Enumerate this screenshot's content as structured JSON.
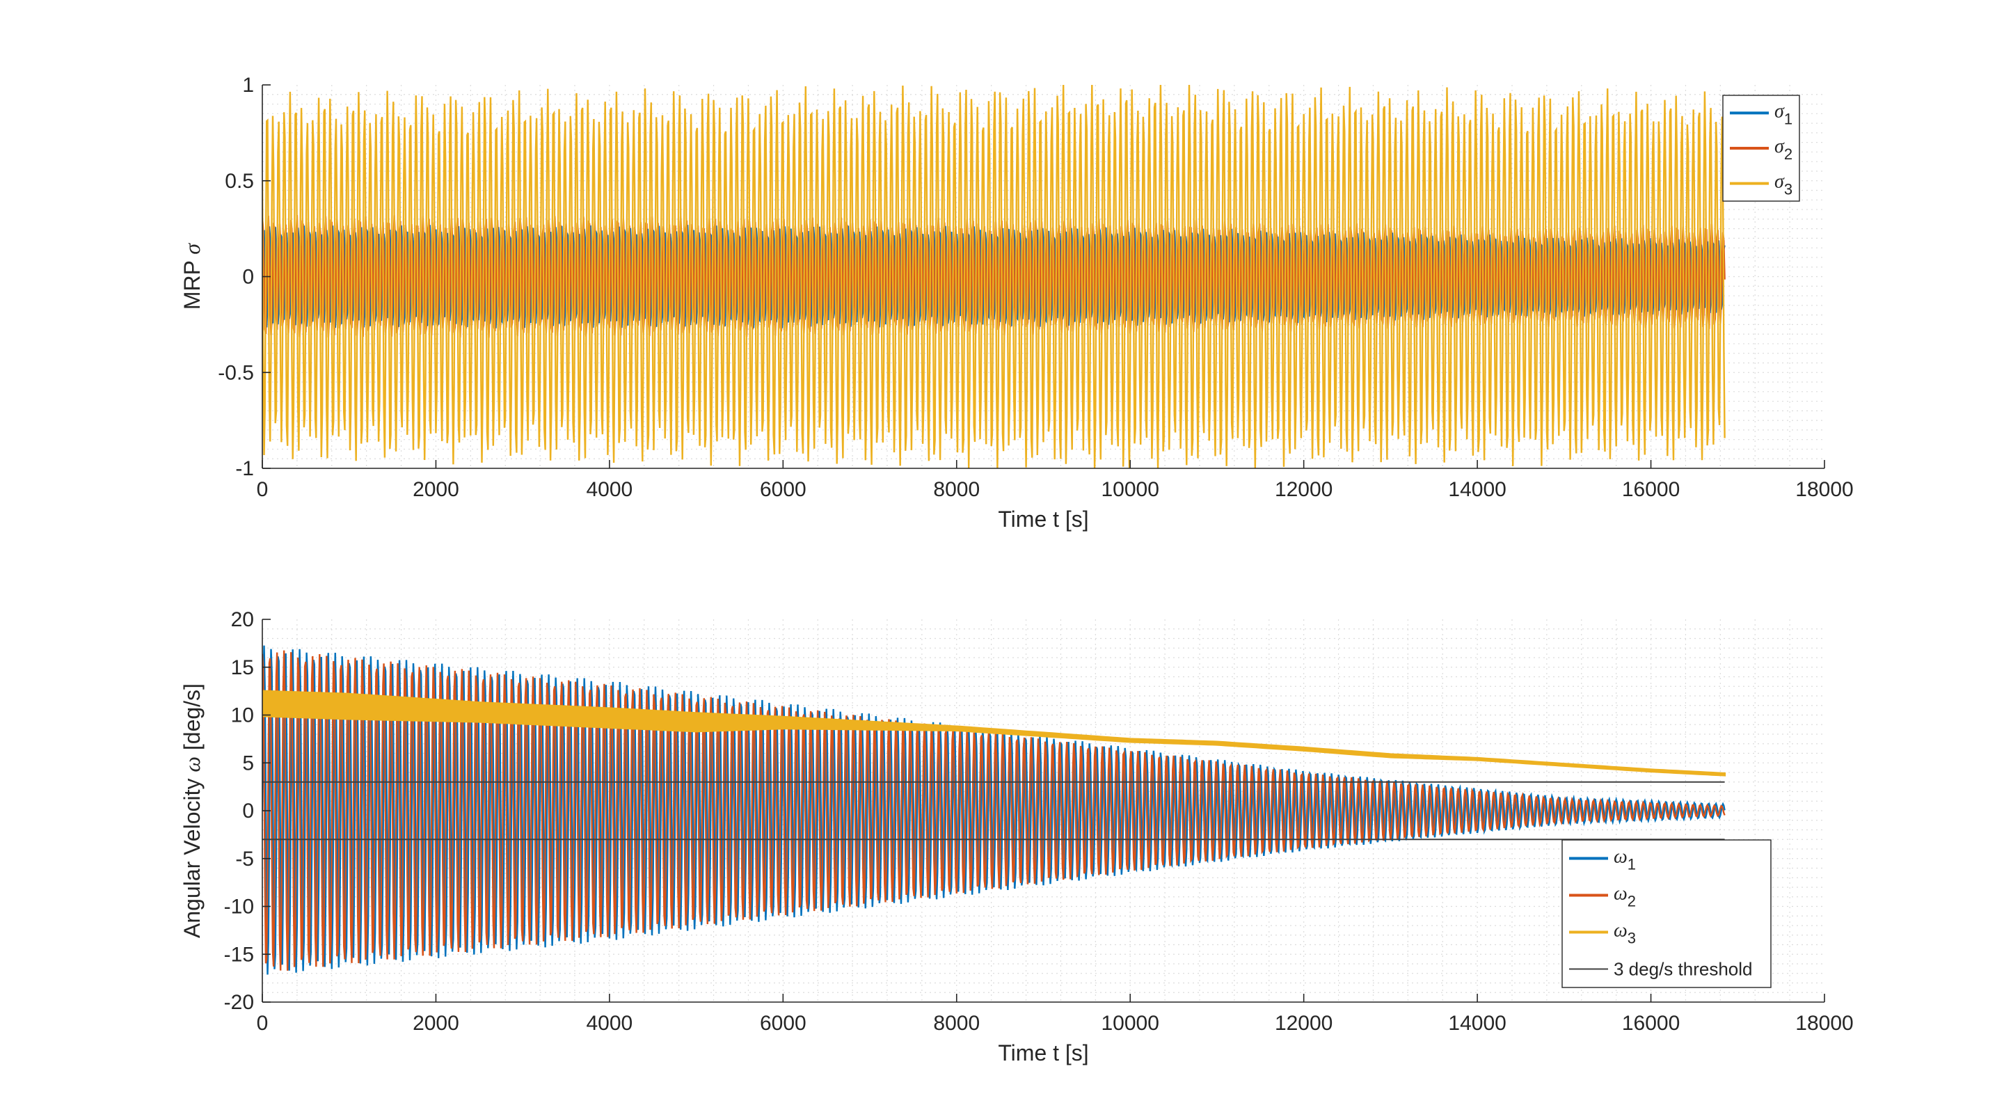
{
  "chart_data": [
    {
      "type": "line",
      "xlabel": "Time t [s]",
      "ylabel_prefix": "MRP ",
      "ylabel_symbol": "σ",
      "xlim": [
        0,
        18000
      ],
      "ylim": [
        -1,
        1
      ],
      "xticks": [
        0,
        2000,
        4000,
        6000,
        8000,
        10000,
        12000,
        14000,
        16000,
        18000
      ],
      "yticks": [
        -1,
        -0.5,
        0,
        0.5,
        1
      ],
      "xtick_labels": [
        "0",
        "2000",
        "4000",
        "6000",
        "8000",
        "10000",
        "12000",
        "14000",
        "16000",
        "18000"
      ],
      "ytick_labels": [
        "-1",
        "-0.5",
        "0",
        "0.5",
        "1"
      ],
      "grid": "minor dotted",
      "legend_position": "top-right",
      "t_end": 16850,
      "series": [
        {
          "name": "σ",
          "sub": "1",
          "color": "#0072BD",
          "envelope": {
            "t": [
              0,
              6000,
              10000,
              12500,
              14500,
              16850
            ],
            "amp": [
              0.25,
              0.25,
              0.24,
              0.22,
              0.2,
              0.18
            ]
          }
        },
        {
          "name": "σ",
          "sub": "2",
          "color": "#D95319",
          "envelope": {
            "t": [
              0,
              6000,
              10000,
              12500,
              14500,
              16850
            ],
            "amp": [
              0.3,
              0.29,
              0.28,
              0.26,
              0.24,
              0.26
            ]
          }
        },
        {
          "name": "σ",
          "sub": "3",
          "color": "#EDB120",
          "envelope": {
            "t": [
              0,
              6000,
              10000,
              12500,
              14500,
              16850
            ],
            "amp": [
              0.9,
              0.92,
              0.95,
              0.92,
              0.92,
              0.9
            ]
          }
        }
      ]
    },
    {
      "type": "line",
      "xlabel": "Time t [s]",
      "ylabel_prefix": "Angular Velocity ",
      "ylabel_symbol": "ω",
      "ylabel_suffix": " [deg/s]",
      "xlim": [
        0,
        18000
      ],
      "ylim": [
        -20,
        20
      ],
      "xticks": [
        0,
        2000,
        4000,
        6000,
        8000,
        10000,
        12000,
        14000,
        16000,
        18000
      ],
      "yticks": [
        -20,
        -15,
        -10,
        -5,
        0,
        5,
        10,
        15,
        20
      ],
      "xtick_labels": [
        "0",
        "2000",
        "4000",
        "6000",
        "8000",
        "10000",
        "12000",
        "14000",
        "16000",
        "18000"
      ],
      "ytick_labels": [
        "-20",
        "-15",
        "-10",
        "-5",
        "0",
        "5",
        "10",
        "15",
        "20"
      ],
      "grid": "minor dotted",
      "legend_position": "bottom-right",
      "t_end": 16850,
      "series": [
        {
          "name": "ω",
          "sub": "1",
          "color": "#0072BD",
          "envelope": {
            "t": [
              0,
              4000,
              8000,
              12000,
              15000,
              16850
            ],
            "amp": [
              17.3,
              13.6,
              9.0,
              4.2,
              1.4,
              0.7
            ]
          }
        },
        {
          "name": "ω",
          "sub": "2",
          "color": "#D95319",
          "envelope": {
            "t": [
              0,
              4000,
              8000,
              12000,
              15000,
              16850
            ],
            "amp": [
              17.0,
              13.2,
              8.7,
              4.0,
              1.2,
              0.5
            ]
          }
        },
        {
          "name": "ω",
          "sub": "3",
          "color": "#EDB120",
          "band": {
            "t": [
              0,
              1000,
              2500,
              4000,
              5000,
              6000,
              8000,
              10000,
              11000,
              12000,
              13000,
              14000,
              15000,
              16000,
              16850
            ],
            "upper": [
              12.5,
              12.2,
              11.3,
              10.7,
              10.2,
              9.8,
              8.8,
              7.5,
              7.2,
              6.6,
              5.9,
              5.5,
              4.9,
              4.3,
              3.9
            ],
            "lower": [
              9.9,
              9.6,
              9.3,
              8.7,
              8.3,
              8.6,
              8.4,
              7.2,
              6.9,
              6.3,
              5.6,
              5.3,
              4.7,
              4.1,
              3.7
            ]
          }
        },
        {
          "name": "3 deg/s threshold",
          "color": "#404040",
          "values": [
            3,
            -3
          ],
          "t": [
            0,
            16850
          ]
        }
      ]
    }
  ]
}
